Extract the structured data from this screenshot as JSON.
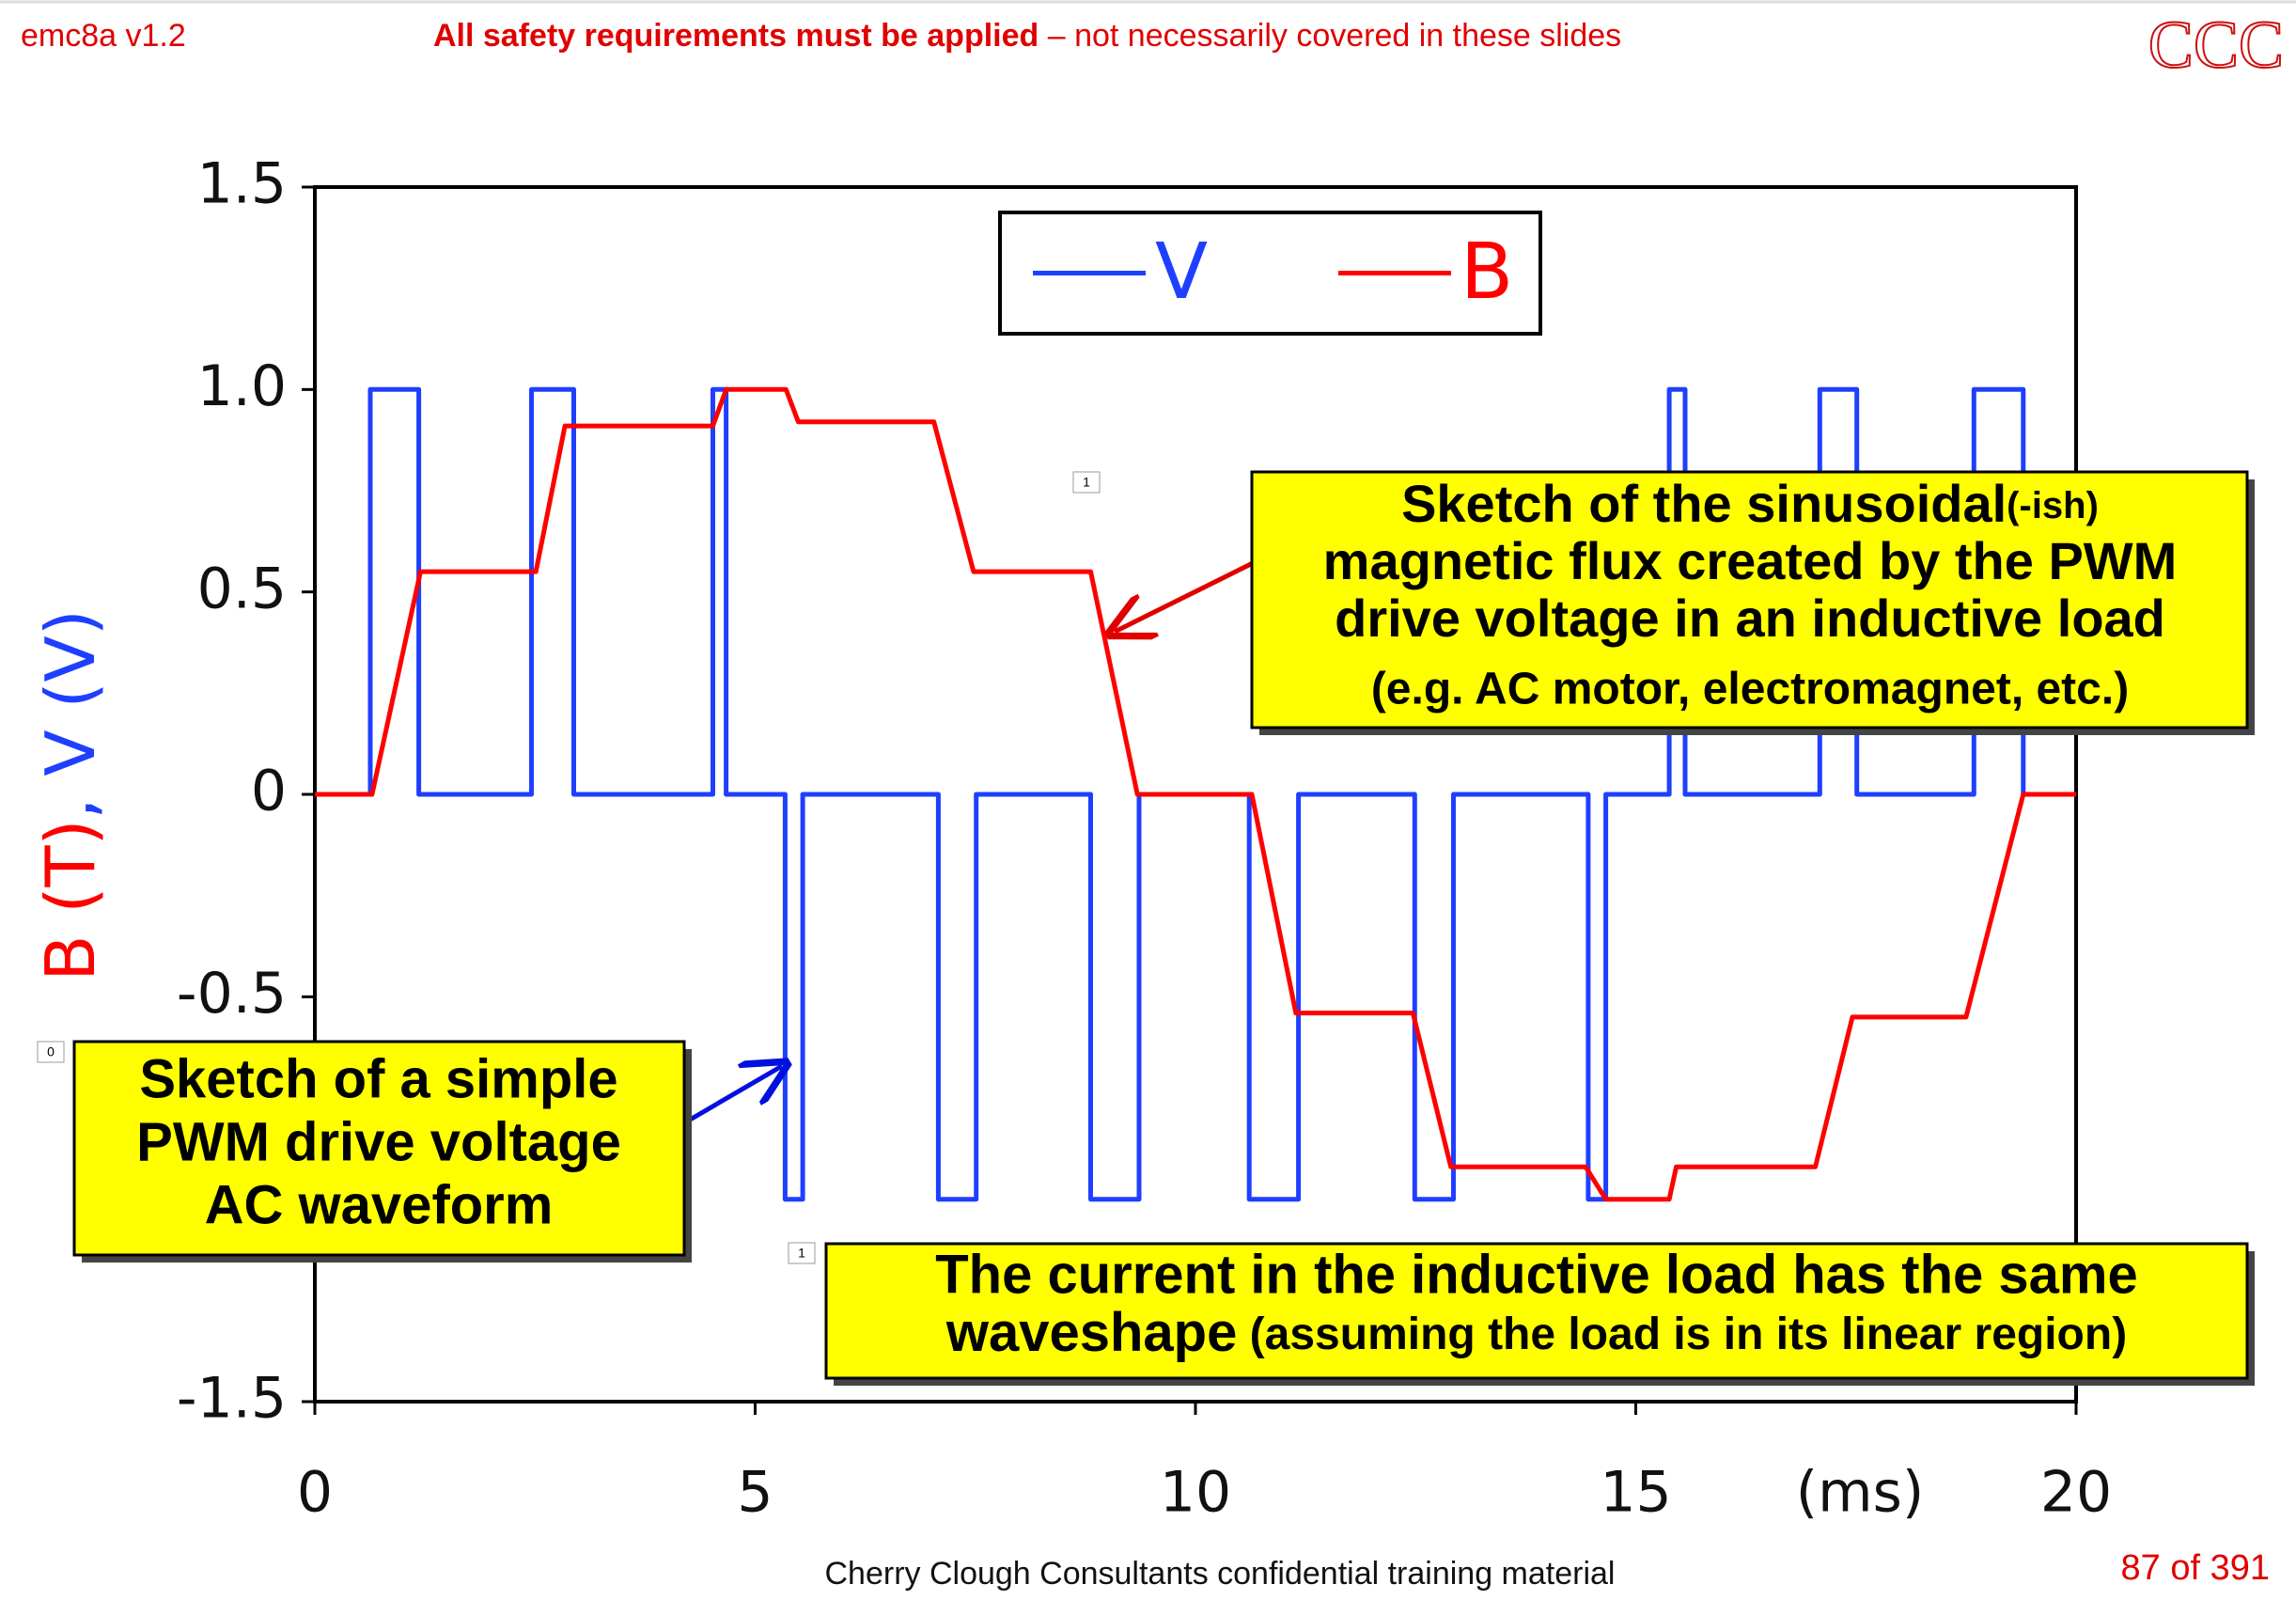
{
  "header": {
    "version": "emc8a v1.2",
    "warning_bold": "All safety requirements must be applied",
    "warning_rest": " – not necessarily covered in these slides",
    "logo": "CCC"
  },
  "footer": {
    "text": "Cherry Clough Consultants confidential training material",
    "page": "87 of 391"
  },
  "markers": [
    "1",
    "0",
    "1"
  ],
  "callouts": [
    {
      "lines": [
        "Sketch of the sinusoidal",
        "(-ish)",
        "magnetic flux created by the PWM",
        "drive voltage in an inductive load",
        "(e.g. AC motor, electromagnet, etc.)"
      ]
    },
    {
      "lines": [
        "Sketch of a simple",
        "PWM drive voltage",
        "AC waveform"
      ]
    },
    {
      "lines": [
        "The current in the inductive load has the same",
        "waveshape",
        " (assuming the load is in its linear region)"
      ]
    }
  ],
  "chart_data": {
    "type": "line",
    "ylabel_parts": [
      "B (T)",
      ", V (V)"
    ],
    "xlabel": "(ms)",
    "xlim": [
      0,
      20
    ],
    "xticks": [
      0,
      5,
      10,
      15,
      20
    ],
    "ylim": [
      -1.5,
      1.5
    ],
    "yticks": [
      -1.5,
      -0.5,
      0,
      0.5,
      {
        "value": 1,
        "label": "1.0"
      },
      1.5
    ],
    "legend": "top",
    "series": [
      {
        "name": "V",
        "color": "#1f3fff",
        "x": [
          0,
          0.63,
          0.63,
          1.18,
          1.18,
          2.46,
          2.46,
          2.94,
          2.94,
          4.52,
          4.52,
          4.67,
          4.67,
          5.34,
          5.34,
          5.54,
          5.54,
          7.08,
          7.08,
          7.51,
          7.51,
          8.81,
          8.81,
          9.36,
          9.36,
          10.61,
          10.61,
          11.17,
          11.17,
          12.49,
          12.49,
          12.93,
          12.93,
          14.46,
          14.46,
          14.66,
          14.66,
          15.38,
          15.38,
          15.56,
          15.56,
          17.09,
          17.09,
          17.51,
          17.51,
          18.84,
          18.84,
          19.4,
          19.4,
          20
        ],
        "values": [
          0,
          0,
          1,
          1,
          0,
          0,
          1,
          1,
          0,
          0,
          1,
          1,
          0,
          0,
          -1,
          -1,
          0,
          0,
          -1,
          -1,
          0,
          0,
          -1,
          -1,
          0,
          0,
          -1,
          -1,
          0,
          0,
          -1,
          -1,
          0,
          0,
          -1,
          -1,
          0,
          0,
          1,
          1,
          0,
          0,
          1,
          1,
          0,
          0,
          1,
          1,
          0,
          0
        ]
      },
      {
        "name": "B",
        "color": "#ff0000",
        "x": [
          0,
          0.65,
          1.2,
          2.51,
          2.84,
          4.52,
          4.67,
          5.35,
          5.49,
          7.03,
          7.48,
          8.81,
          9.34,
          10.64,
          11.14,
          12.47,
          12.9,
          14.43,
          14.66,
          15.38,
          15.46,
          17.04,
          17.46,
          18.75,
          19.4,
          20
        ],
        "values": [
          0,
          0,
          0.55,
          0.55,
          0.91,
          0.91,
          1,
          1,
          0.92,
          0.92,
          0.55,
          0.55,
          0,
          0,
          -0.54,
          -0.54,
          -0.92,
          -0.92,
          -1,
          -1,
          -0.92,
          -0.92,
          -0.55,
          -0.55,
          0,
          0
        ]
      }
    ]
  }
}
